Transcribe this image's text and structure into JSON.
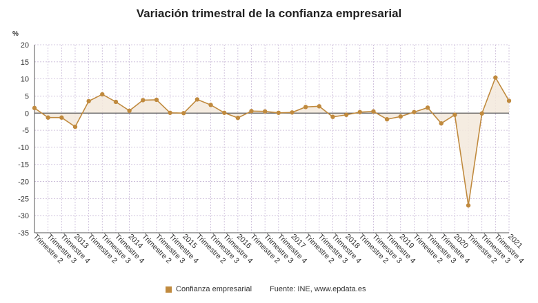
{
  "chart_data": {
    "type": "line",
    "title": "Variación trimestral de la confianza empresarial",
    "y_unit": "%",
    "ylim": [
      -35,
      20
    ],
    "y_ticks": [
      20,
      15,
      10,
      5,
      0,
      -5,
      -10,
      -15,
      -20,
      -25,
      -30,
      -35
    ],
    "grid": true,
    "legend_position": "bottom",
    "categories": [
      "Trimestre 2",
      "Trimestre 3",
      "Trimestre 4",
      "2013",
      "Trimestre 2",
      "Trimestre 3",
      "Trimestre 4",
      "2014",
      "Trimestre 2",
      "Trimestre 3",
      "Trimestre 4",
      "2015",
      "Trimestre 2",
      "Trimestre 3",
      "Trimestre 4",
      "2016",
      "Trimestre 2",
      "Trimestre 3",
      "Trimestre 4",
      "2017",
      "Trimestre 2",
      "Trimestre 3",
      "Trimestre 4",
      "2018",
      "Trimestre 2",
      "Trimestre 3",
      "Trimestre 4",
      "2019",
      "Trimestre 2",
      "Trimestre 3",
      "Trimestre 4",
      "2020",
      "Trimestre 2",
      "Trimestre 3",
      "Trimestre 4",
      "2021"
    ],
    "series": [
      {
        "name": "Confianza empresarial",
        "color": "#c08a3e",
        "values": [
          1.5,
          -1.3,
          -1.3,
          -4.0,
          3.5,
          5.5,
          3.3,
          0.7,
          3.8,
          3.9,
          0.1,
          0.0,
          4.0,
          2.4,
          0.1,
          -1.4,
          0.6,
          0.5,
          0.1,
          0.2,
          1.8,
          2.0,
          -1.1,
          -0.5,
          0.3,
          0.5,
          -1.8,
          -1.0,
          0.3,
          1.6,
          -3.0,
          -0.5,
          -27.0,
          -0.1,
          10.4,
          3.6
        ]
      }
    ]
  },
  "legend": {
    "label": "Confianza empresarial"
  },
  "source": "Fuente: INE, www.epdata.es",
  "colors": {
    "grid": "#c7b7d6",
    "axis": "#555555",
    "zero_line": "#555555",
    "fill": "#f3e9dc"
  }
}
